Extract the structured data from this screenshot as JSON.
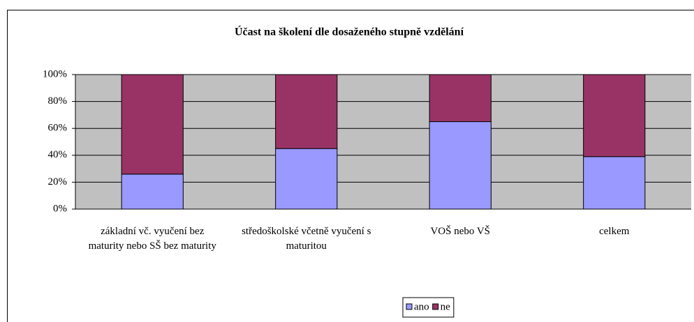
{
  "chart_data": {
    "type": "stacked_bar",
    "title": "Účast na školení dle dosaženého stupně vzdělání",
    "categories": [
      "základní vč. vyučení bez maturity nebo SŠ bez maturity",
      "středoškolské včetně vyučení s maturitou",
      "VOŠ nebo VŠ",
      "celkem"
    ],
    "series": [
      {
        "name": "ano",
        "color": "#9999ff",
        "values": [
          26,
          45,
          65,
          39
        ]
      },
      {
        "name": "ne",
        "color": "#993366",
        "values": [
          74,
          55,
          35,
          61
        ]
      }
    ],
    "ylim": [
      0,
      100
    ],
    "yticks": [
      {
        "value": 0,
        "label": "0%"
      },
      {
        "value": 20,
        "label": "20%"
      },
      {
        "value": 40,
        "label": "40%"
      },
      {
        "value": 60,
        "label": "60%"
      },
      {
        "value": 80,
        "label": "80%"
      },
      {
        "value": 100,
        "label": "100%"
      }
    ],
    "grid": true,
    "legend": "bottom"
  }
}
